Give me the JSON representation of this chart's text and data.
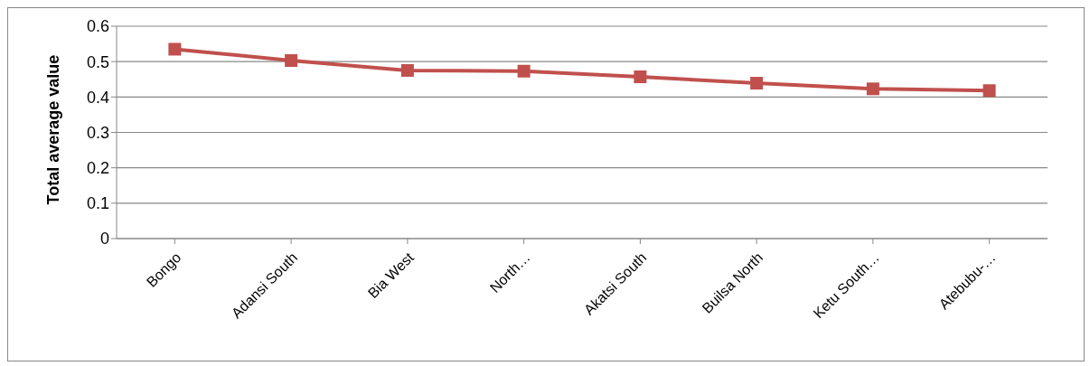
{
  "chart_data": {
    "type": "line",
    "ylabel": "Total average value",
    "categories": [
      "Bongo",
      "Adansi South",
      "Bia West",
      "North…",
      "Akatsi South",
      "Builsa North",
      "Ketu South…",
      "Atebubu-…"
    ],
    "series": [
      {
        "color": "#c0504d",
        "values": [
          0.535,
          0.503,
          0.475,
          0.473,
          0.457,
          0.439,
          0.423,
          0.418
        ]
      }
    ],
    "ylim": [
      0,
      0.6
    ],
    "yticks": [
      0,
      0.1,
      0.2,
      0.3,
      0.4,
      0.5,
      0.6
    ],
    "grid": "y",
    "legend": false,
    "marker": "square",
    "line_style": "solid"
  }
}
